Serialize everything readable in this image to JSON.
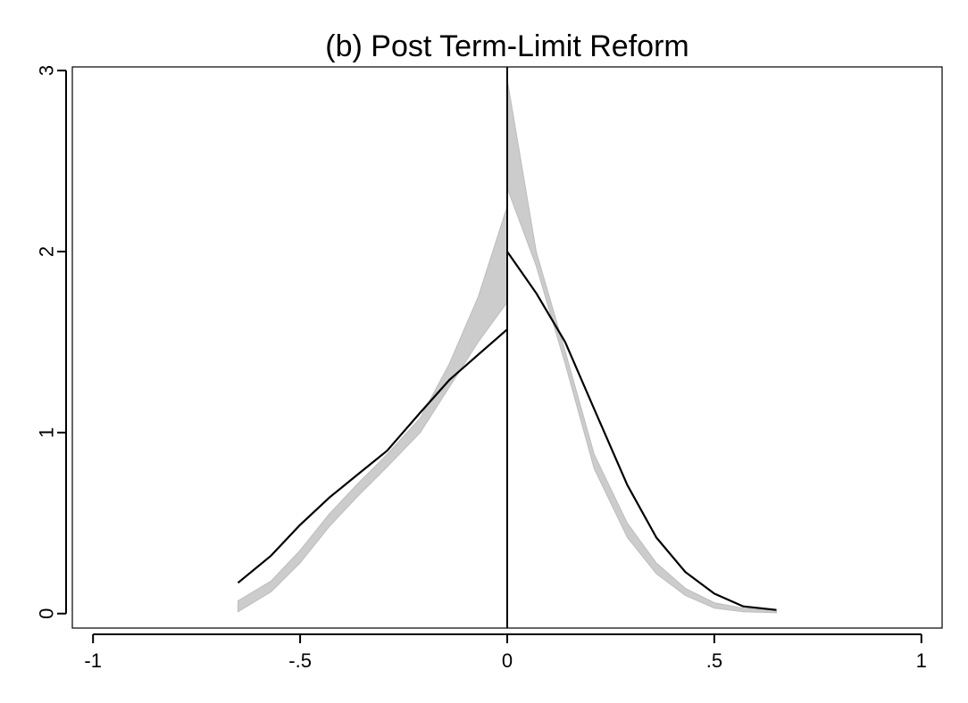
{
  "chart_data": {
    "type": "line",
    "title": "(b) Post Term-Limit Reform",
    "xlabel": "",
    "ylabel": "",
    "xlim": [
      -1.05,
      1.05
    ],
    "ylim": [
      -0.08,
      3.02
    ],
    "x_ticks": [
      -1,
      -0.5,
      0,
      0.5,
      1
    ],
    "x_tick_labels": [
      "-1",
      "-.5",
      "0",
      ".5",
      "1"
    ],
    "y_ticks": [
      0,
      1,
      2,
      3
    ],
    "y_tick_labels": [
      "0",
      "1",
      "2",
      "3"
    ],
    "grid": false,
    "legend": "none",
    "cutoff_line": {
      "x": 0
    },
    "colors": {
      "band": "#cccccc",
      "band_edge": "#bdbdbd",
      "line": "#000000",
      "axis": "#000000"
    },
    "series": [
      {
        "kind": "band",
        "segment": "left",
        "x": [
          -0.65,
          -0.57,
          -0.5,
          -0.43,
          -0.36,
          -0.29,
          -0.21,
          -0.14,
          -0.07,
          0.0
        ],
        "lower": [
          0.01,
          0.12,
          0.28,
          0.48,
          0.65,
          0.81,
          1.0,
          1.25,
          1.5,
          1.72
        ],
        "upper": [
          0.07,
          0.18,
          0.35,
          0.55,
          0.72,
          0.88,
          1.08,
          1.38,
          1.75,
          2.25
        ]
      },
      {
        "kind": "band",
        "segment": "right",
        "x": [
          0.0,
          0.07,
          0.14,
          0.21,
          0.29,
          0.36,
          0.43,
          0.5,
          0.57,
          0.65
        ],
        "lower": [
          2.35,
          1.92,
          1.38,
          0.8,
          0.42,
          0.22,
          0.1,
          0.03,
          0.01,
          0.005
        ],
        "upper": [
          2.95,
          2.0,
          1.45,
          0.88,
          0.5,
          0.28,
          0.14,
          0.06,
          0.03,
          0.015
        ]
      },
      {
        "kind": "line",
        "segment": "left",
        "x": [
          -0.65,
          -0.57,
          -0.5,
          -0.43,
          -0.36,
          -0.29,
          -0.21,
          -0.14,
          -0.07,
          0.0
        ],
        "y": [
          0.17,
          0.32,
          0.49,
          0.64,
          0.77,
          0.9,
          1.11,
          1.29,
          1.43,
          1.57
        ]
      },
      {
        "kind": "line",
        "segment": "right",
        "x": [
          0.0,
          0.07,
          0.14,
          0.21,
          0.29,
          0.36,
          0.43,
          0.5,
          0.57,
          0.65
        ],
        "y": [
          2.0,
          1.77,
          1.5,
          1.13,
          0.71,
          0.42,
          0.23,
          0.11,
          0.04,
          0.02
        ]
      }
    ]
  }
}
